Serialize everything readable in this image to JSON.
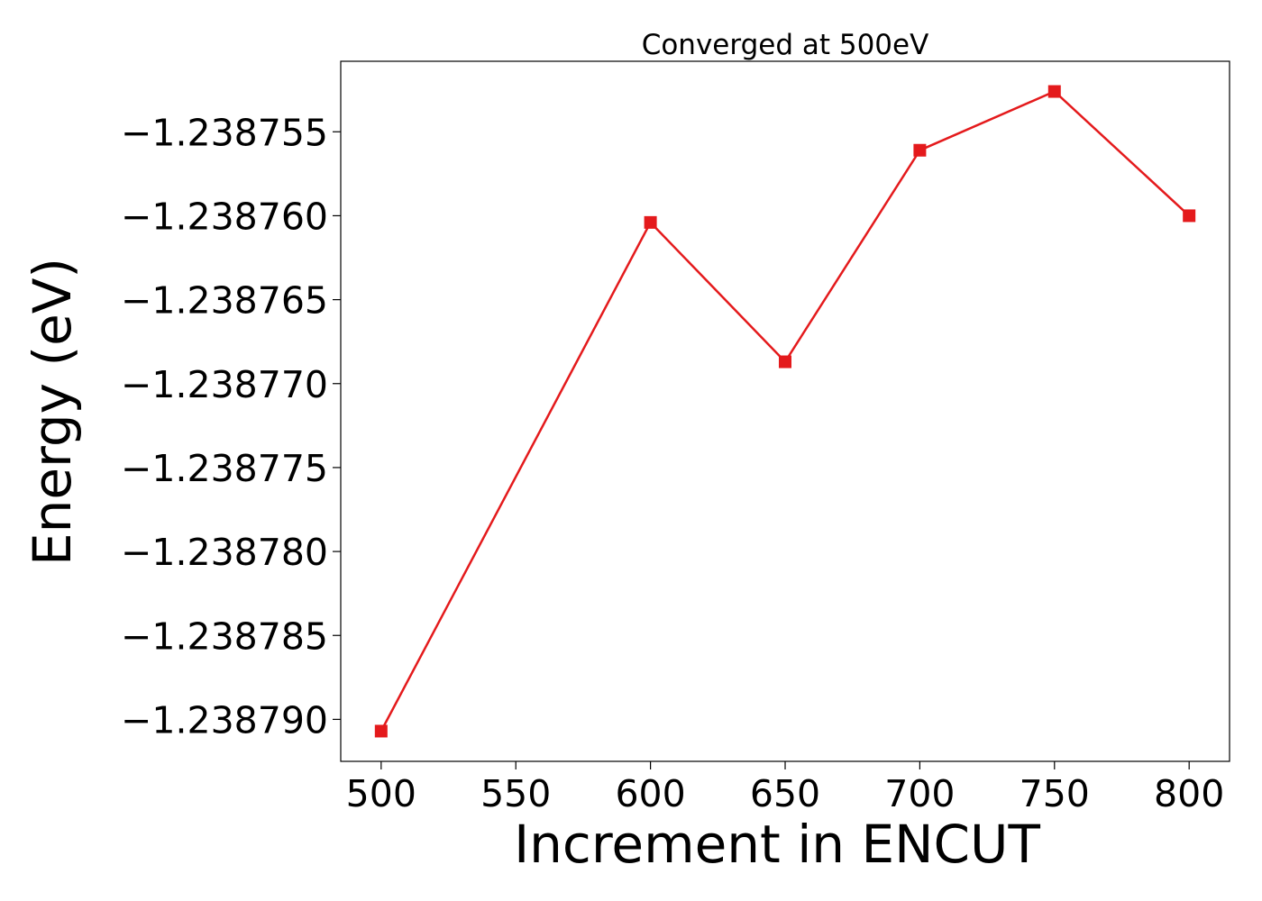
{
  "chart_data": {
    "type": "line",
    "title": "Converged at 500eV",
    "xlabel": "Increment in ENCUT",
    "ylabel": "Energy (eV)",
    "x": [
      500,
      600,
      650,
      700,
      750,
      800
    ],
    "xlim": [
      485,
      815
    ],
    "ylim": [
      -1.2387925,
      -1.2387508
    ],
    "x_ticks": [
      500,
      550,
      600,
      650,
      700,
      750,
      800
    ],
    "x_tick_labels": [
      "500",
      "550",
      "600",
      "650",
      "700",
      "750",
      "800"
    ],
    "y_ticks": [
      -1.238755,
      -1.23876,
      -1.238765,
      -1.23877,
      -1.238775,
      -1.23878,
      -1.238785,
      -1.23879
    ],
    "y_tick_labels": [
      "−1.238755",
      "−1.238760",
      "−1.238765",
      "−1.238770",
      "−1.238775",
      "−1.238780",
      "−1.238785",
      "−1.238790"
    ],
    "grid": false,
    "series": [
      {
        "values": [
          -1.2387907,
          -1.2387604,
          -1.2387687,
          -1.2387561,
          -1.2387526,
          -1.23876
        ],
        "color": "#e41a1c",
        "marker": "square"
      }
    ]
  }
}
